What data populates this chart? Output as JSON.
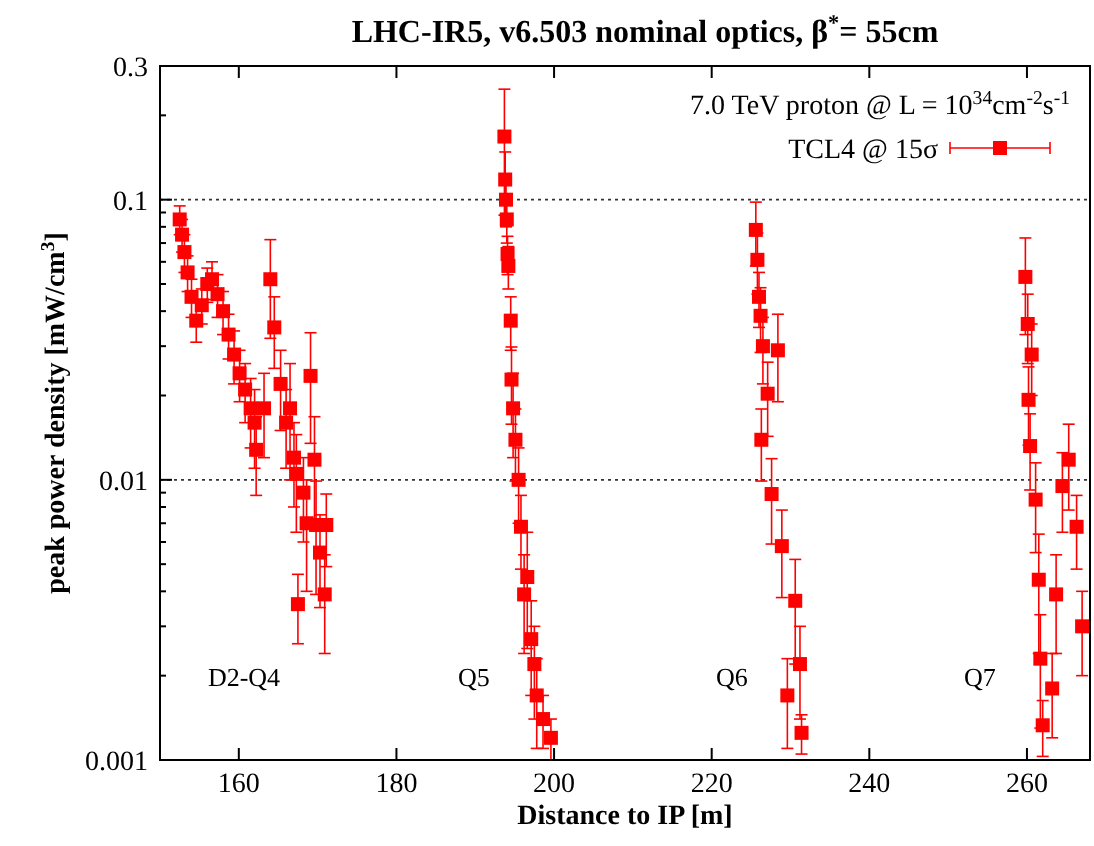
{
  "chart_data": {
    "type": "scatter",
    "title": "LHC-IR5, v6.503 nominal optics, β$^{*}$= 55cm",
    "xlabel": "Distance to IP [m]",
    "ylabel": "peak power density [mW/cm$^{3}$]",
    "legend_title": "7.0 TeV proton @ L = 10$^{34}$cm$^{-2}$s$^{-1}$",
    "legend": "top right",
    "log": "y",
    "grid": "y",
    "marker": "square",
    "xlim": [
      150,
      268
    ],
    "xticks": [
      160,
      180,
      200,
      220,
      240,
      260
    ],
    "ylim": [
      0.001,
      0.3
    ],
    "yticks": [
      {
        "value": 0.001,
        "label": "0.001"
      },
      {
        "value": 0.002,
        "label": null
      },
      {
        "value": 0.003,
        "label": null
      },
      {
        "value": 0.004,
        "label": null
      },
      {
        "value": 0.005,
        "label": null
      },
      {
        "value": 0.006,
        "label": null
      },
      {
        "value": 0.007,
        "label": null
      },
      {
        "value": 0.008,
        "label": null
      },
      {
        "value": 0.009,
        "label": null
      },
      {
        "value": 0.01,
        "label": "0.01"
      },
      {
        "value": 0.02,
        "label": null
      },
      {
        "value": 0.03,
        "label": null
      },
      {
        "value": 0.04,
        "label": null
      },
      {
        "value": 0.05,
        "label": null
      },
      {
        "value": 0.06,
        "label": null
      },
      {
        "value": 0.07,
        "label": null
      },
      {
        "value": 0.08,
        "label": null
      },
      {
        "value": 0.09,
        "label": null
      },
      {
        "value": 0.1,
        "label": "0.1"
      },
      {
        "value": 0.2,
        "label": null
      },
      {
        "value": 0.3,
        "label": "0.3"
      }
    ],
    "annotations": [
      "D2-Q4",
      "Q5",
      "Q6",
      "Q7"
    ],
    "series": [
      {
        "name": "TCL4 @ 15σ",
        "color": "#ff0000",
        "x": [
          152.5,
          152.8,
          153.1,
          153.5,
          154.0,
          154.6,
          155.3,
          156.0,
          156.6,
          157.3,
          158.0,
          158.7,
          159.4,
          160.1,
          160.8,
          161.5,
          162.0,
          162.2,
          163.2,
          164.0,
          164.5,
          165.3,
          166.0,
          166.5,
          167.0,
          167.3,
          167.5,
          168.2,
          168.6,
          169.1,
          169.6,
          169.8,
          170.3,
          170.9,
          171.1,
          193.7,
          193.8,
          193.9,
          194.0,
          194.1,
          194.2,
          194.5,
          194.6,
          194.8,
          195.1,
          195.5,
          195.8,
          196.2,
          196.6,
          197.1,
          197.5,
          197.8,
          198.6,
          199.6,
          225.6,
          225.8,
          226.0,
          226.2,
          226.3,
          226.5,
          227.1,
          227.6,
          228.4,
          228.9,
          229.6,
          230.6,
          231.2,
          231.4,
          259.8,
          260.1,
          260.2,
          260.4,
          260.6,
          261.1,
          261.5,
          261.7,
          262.0,
          263.2,
          263.7,
          264.5,
          265.3,
          266.3,
          267.0
        ],
        "values": [
          0.085,
          0.075,
          0.065,
          0.055,
          0.045,
          0.037,
          0.042,
          0.05,
          0.052,
          0.046,
          0.04,
          0.033,
          0.028,
          0.024,
          0.021,
          0.018,
          0.016,
          0.0128,
          0.018,
          0.052,
          0.035,
          0.022,
          0.016,
          0.018,
          0.012,
          0.0105,
          0.0036,
          0.009,
          0.007,
          0.0235,
          0.0118,
          0.0069,
          0.0055,
          0.0039,
          0.0069,
          0.168,
          0.118,
          0.1,
          0.085,
          0.064,
          0.058,
          0.037,
          0.0228,
          0.018,
          0.0139,
          0.01,
          0.0068,
          0.0039,
          0.0045,
          0.0027,
          0.0022,
          0.0017,
          0.0014,
          0.0012,
          0.078,
          0.061,
          0.045,
          0.0385,
          0.0139,
          0.03,
          0.0203,
          0.0089,
          0.029,
          0.0058,
          0.0017,
          0.0037,
          0.0022,
          0.00125,
          0.053,
          0.036,
          0.0193,
          0.0132,
          0.028,
          0.0085,
          0.0044,
          0.0023,
          0.00133,
          0.0018,
          0.0039,
          0.0095,
          0.0118,
          0.0068,
          0.003
        ],
        "errors": [
          0.01,
          0.01,
          0.01,
          0.008,
          0.007,
          0.006,
          0.006,
          0.007,
          0.008,
          0.008,
          0.007,
          0.006,
          0.006,
          0.005,
          0.005,
          0.005,
          0.005,
          0.004,
          0.006,
          0.02,
          0.01,
          0.007,
          0.005,
          0.008,
          0.004,
          0.004,
          0.001,
          0.003,
          0.003,
          0.01,
          0.005,
          0.003,
          0.002,
          0.0015,
          0.002,
          0.08,
          0.03,
          0.02,
          0.015,
          0.01,
          0.01,
          0.008,
          0.007,
          0.006,
          0.004,
          0.003,
          0.002,
          0.0015,
          0.002,
          0.001,
          0.0008,
          0.0006,
          0.0003,
          0.0002,
          0.02,
          0.015,
          0.01,
          0.01,
          0.004,
          0.008,
          0.006,
          0.003,
          0.01,
          0.002,
          0.0006,
          0.0015,
          0.0008,
          0.0002,
          0.02,
          0.01,
          0.006,
          0.004,
          0.008,
          0.003,
          0.002,
          0.001,
          0.0003,
          0.0006,
          0.0015,
          0.003,
          0.004,
          0.002,
          0.001
        ]
      }
    ]
  }
}
